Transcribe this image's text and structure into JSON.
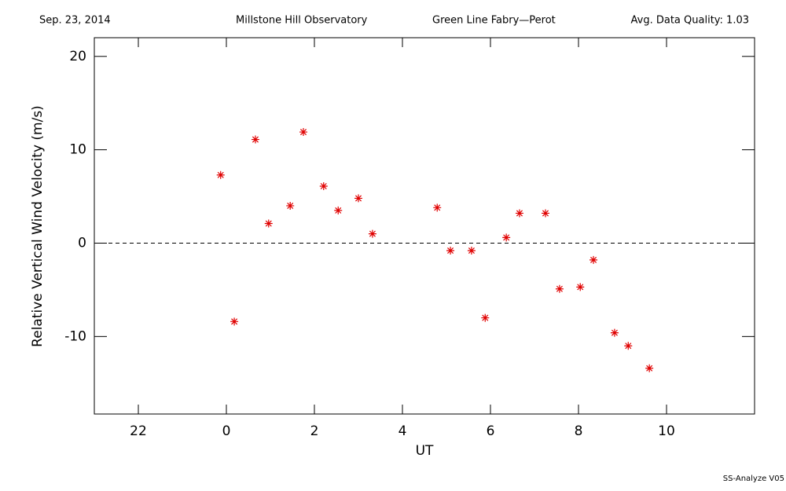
{
  "chart_data": {
    "type": "scatter",
    "header": [
      "Sep. 23, 2014",
      "Millstone Hill Observatory",
      "Green Line Fabry—Perot",
      "Avg. Data Quality: 1.03"
    ],
    "footer": "SS-Analyze V05",
    "x_label": "UT",
    "y_label": "Relative Vertical Wind Velocity (m/s)",
    "xlim": [
      -3,
      12
    ],
    "ylim": [
      -18.3,
      22
    ],
    "xticks": [
      {
        "value": -2,
        "label": "22"
      },
      0,
      2,
      4,
      6,
      8,
      10
    ],
    "yticks": [
      -10,
      0,
      10,
      20
    ],
    "reference_line": 0,
    "series": [
      {
        "color": "#e00000",
        "x": [
          -0.13,
          0.18,
          0.66,
          0.96,
          1.45,
          1.75,
          2.21,
          2.54,
          3.0,
          3.32,
          4.79,
          5.09,
          5.57,
          5.88,
          6.36,
          6.66,
          7.25,
          7.57,
          8.04,
          8.34,
          8.82,
          9.13,
          9.61
        ],
        "values": [
          7.3,
          -8.4,
          11.1,
          2.1,
          4.0,
          11.9,
          6.1,
          3.5,
          4.8,
          1.0,
          3.8,
          -0.8,
          -0.8,
          -8.0,
          0.6,
          3.2,
          3.2,
          -4.9,
          -4.7,
          -1.8,
          -9.6,
          -11.0,
          -13.4
        ]
      }
    ]
  }
}
